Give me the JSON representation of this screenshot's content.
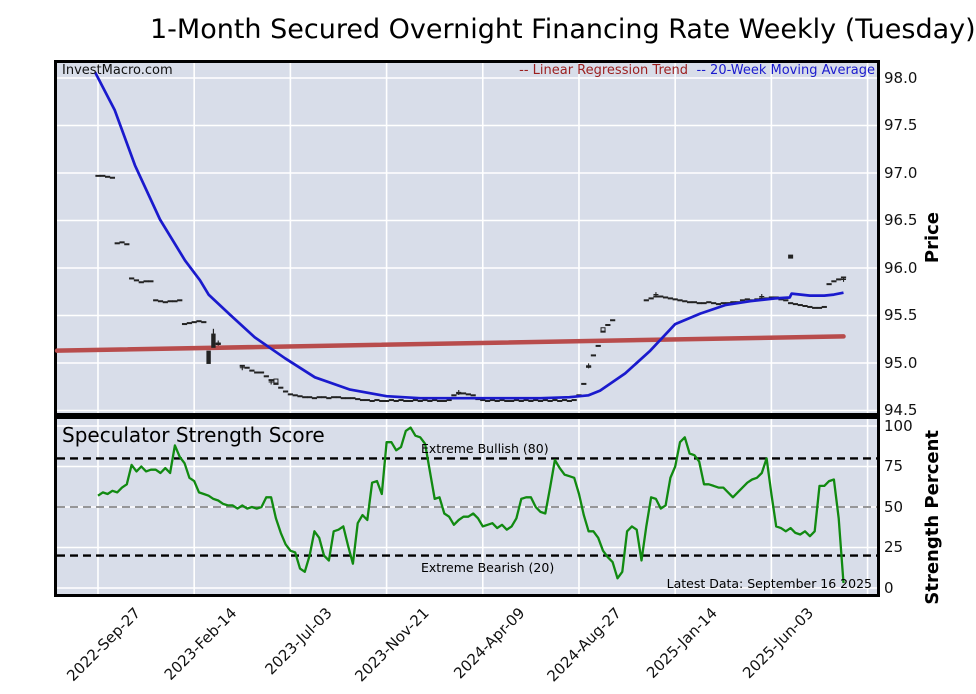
{
  "title": "1-Month Secured Overnight Financing Rate Weekly (Tuesday)",
  "watermark": "InvestMacro.com",
  "legend": {
    "regression": "-- Linear Regression Trend",
    "moving_average": "-- 20-Week Moving Average"
  },
  "subplot_title": "Speculator Strength Score",
  "annotations": {
    "extreme_bullish": "Extreme Bullish (80)",
    "extreme_bearish": "Extreme Bearish (20)",
    "latest_data": "Latest Data: September 16 2025"
  },
  "axis_labels": {
    "price": "Price",
    "strength": "Strength Percent"
  },
  "colors": {
    "plot_bg": "#d8dde9",
    "grid": "#ffffff",
    "border": "#000000",
    "ma_line": "#1a1acd",
    "regression_line": "#b84c4c",
    "regression_text": "#9b1e1e",
    "strength_line": "#118a11",
    "marks": "#222222",
    "threshold_line": "#000000",
    "mid_line": "#8a8a8a",
    "text": "#000000"
  },
  "chart_data": [
    {
      "type": "line",
      "panel": "price",
      "title": "1-Month Secured Overnight Financing Rate Weekly (Tuesday)",
      "ylabel": "Price",
      "ylim": [
        94.46,
        98.16
      ],
      "yticks": [
        98.0,
        97.5,
        97.0,
        96.5,
        96.0,
        95.5,
        95.0,
        94.5
      ],
      "xticks": [
        {
          "week": 8,
          "label": "2022-Sep-27"
        },
        {
          "week": 28,
          "label": "2023-Feb-14"
        },
        {
          "week": 48,
          "label": "2023-Jul-03"
        },
        {
          "week": 68,
          "label": "2023-Nov-21"
        },
        {
          "week": 88,
          "label": "2024-Apr-09"
        },
        {
          "week": 108,
          "label": "2024-Aug-27"
        },
        {
          "week": 128,
          "label": "2025-Jan-14"
        },
        {
          "week": 148,
          "label": "2025-Jun-03"
        },
        {
          "week": 168,
          "label": ""
        }
      ],
      "price_series": {
        "start_week": 8,
        "values": [
          96.97,
          96.97,
          96.96,
          96.95,
          96.26,
          96.27,
          96.25,
          95.89,
          95.87,
          95.85,
          95.86,
          95.86,
          95.66,
          95.65,
          95.64,
          95.65,
          95.65,
          95.66,
          95.41,
          95.42,
          95.43,
          95.44,
          95.43,
          null,
          null,
          95.2,
          null,
          null,
          null,
          null,
          94.97,
          94.95,
          94.92,
          94.9,
          94.9,
          94.86,
          94.82,
          94.78,
          94.74,
          94.7,
          94.67,
          94.66,
          94.65,
          94.64,
          94.64,
          94.63,
          94.64,
          94.64,
          94.63,
          94.64,
          94.64,
          94.63,
          94.63,
          94.63,
          94.62,
          94.61,
          94.61,
          94.6,
          94.61,
          94.6,
          94.6,
          94.61,
          94.6,
          94.61,
          94.6,
          94.6,
          94.61,
          94.6,
          94.61,
          94.6,
          94.61,
          94.6,
          94.6,
          94.61,
          94.66,
          94.68,
          94.68,
          94.67,
          94.66,
          94.62,
          94.61,
          94.6,
          94.61,
          94.6,
          94.61,
          94.6,
          94.6,
          94.61,
          94.6,
          94.61,
          94.6,
          94.61,
          94.6,
          94.61,
          94.6,
          94.61,
          94.6,
          94.61,
          94.6,
          94.61,
          94.66,
          94.78,
          94.96,
          95.08,
          95.18,
          95.33,
          95.4,
          95.45,
          null,
          null,
          null,
          null,
          null,
          null,
          95.66,
          95.68,
          95.7,
          95.7,
          95.69,
          95.68,
          95.67,
          95.66,
          95.65,
          95.64,
          95.64,
          95.63,
          95.63,
          95.64,
          95.63,
          95.62,
          95.63,
          95.63,
          95.64,
          95.64,
          95.66,
          95.67,
          95.66,
          95.67,
          95.68,
          95.68,
          95.69,
          95.69,
          95.67,
          95.66,
          95.63,
          95.62,
          95.61,
          95.6,
          95.59,
          95.58,
          95.58,
          95.59,
          95.83,
          95.86,
          95.88,
          95.9
        ]
      },
      "bars": [
        {
          "week": 31,
          "high": 95.13,
          "low": 94.99
        },
        {
          "week": 32,
          "high": 95.31,
          "low": 95.16,
          "wick": 95.36
        }
      ],
      "plus_marks": [
        [
          33,
          95.21
        ],
        [
          38,
          94.95
        ],
        [
          44,
          94.8
        ],
        [
          83,
          94.69
        ],
        [
          110,
          94.97
        ],
        [
          124,
          95.72
        ],
        [
          146,
          95.7
        ],
        [
          163,
          95.88
        ]
      ],
      "open_square_marks": [
        [
          45,
          94.81
        ],
        [
          113,
          95.35
        ]
      ],
      "square_marks": [
        [
          152,
          96.12
        ]
      ],
      "moving_average": [
        [
          7.4,
          98.06
        ],
        [
          11.5,
          97.66
        ],
        [
          15.7,
          97.08
        ],
        [
          20.9,
          96.51
        ],
        [
          26.1,
          96.08
        ],
        [
          29.2,
          95.87
        ],
        [
          31,
          95.72
        ],
        [
          35.4,
          95.51
        ],
        [
          40.6,
          95.27
        ],
        [
          46.9,
          95.05
        ],
        [
          53.1,
          94.85
        ],
        [
          60.4,
          94.72
        ],
        [
          68,
          94.65
        ],
        [
          75,
          94.63
        ],
        [
          83,
          94.63
        ],
        [
          91,
          94.63
        ],
        [
          100,
          94.63
        ],
        [
          106,
          94.64
        ],
        [
          110,
          94.66
        ],
        [
          112.4,
          94.71
        ],
        [
          117.6,
          94.89
        ],
        [
          122.8,
          95.13
        ],
        [
          128,
          95.41
        ],
        [
          133.2,
          95.52
        ],
        [
          138.4,
          95.61
        ],
        [
          143.6,
          95.65
        ],
        [
          148.8,
          95.68
        ],
        [
          151.8,
          95.69
        ],
        [
          152.2,
          95.73
        ],
        [
          156,
          95.71
        ],
        [
          159,
          95.71
        ],
        [
          161,
          95.72
        ],
        [
          163,
          95.74
        ]
      ],
      "regression": {
        "start_week": 0,
        "start_value": 95.13,
        "end_week": 163,
        "end_value": 95.28
      }
    },
    {
      "type": "line",
      "panel": "strength",
      "title": "Speculator Strength Score",
      "ylabel": "Strength Percent",
      "ylim": [
        0,
        100
      ],
      "yticks": [
        100,
        75,
        50,
        25,
        0
      ],
      "thresholds": [
        {
          "value": 80,
          "style": "black-dashed",
          "label": "Extreme Bullish (80)"
        },
        {
          "value": 50,
          "style": "gray-dashed",
          "label": ""
        },
        {
          "value": 20,
          "style": "black-dashed",
          "label": "Extreme Bearish (20)"
        }
      ],
      "series": {
        "start_week": 8,
        "values": [
          57,
          59,
          58,
          60,
          59,
          62,
          64,
          76,
          72,
          75,
          72,
          73,
          73,
          71,
          74,
          71,
          88,
          81,
          77,
          68,
          66,
          59,
          58,
          57,
          55,
          54,
          52,
          51,
          51,
          49,
          51,
          49,
          50,
          49,
          50,
          56,
          56,
          43,
          34,
          27,
          23,
          22,
          12,
          10,
          20,
          35,
          31,
          20,
          17,
          35,
          36,
          38,
          26,
          15,
          40,
          45,
          42,
          65,
          66,
          58,
          90,
          90,
          85,
          87,
          97,
          99,
          94,
          93,
          89,
          72,
          55,
          56,
          46,
          44,
          39,
          42,
          44,
          44,
          46,
          43,
          38,
          39,
          40,
          37,
          39,
          36,
          38,
          43,
          55,
          56,
          56,
          50,
          47,
          46,
          62,
          79,
          74,
          70,
          69,
          68,
          58,
          45,
          35,
          35,
          31,
          23,
          19,
          16,
          6,
          10,
          35,
          38,
          36,
          17,
          38,
          56,
          55,
          49,
          51,
          68,
          75,
          90,
          93,
          83,
          82,
          78,
          64,
          64,
          63,
          62,
          62,
          59,
          56,
          59,
          62,
          65,
          67,
          68,
          71,
          80,
          58,
          38,
          37,
          35,
          37,
          34,
          33,
          35,
          32,
          35,
          63,
          63,
          66,
          67,
          43,
          3
        ]
      }
    }
  ]
}
